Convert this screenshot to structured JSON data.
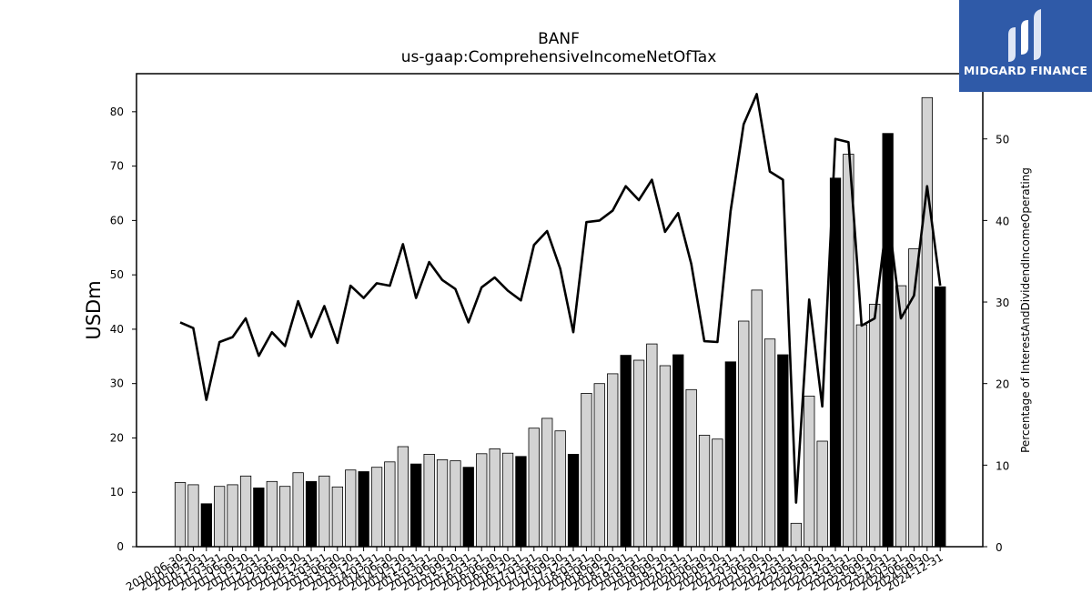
{
  "chart_data": {
    "type": "bar",
    "title": "BANF",
    "subtitle": "us-gaap:ComprehensiveIncomeNetOfTax",
    "ylabel": "USDm",
    "ylabel_right": "Percentage of InterestAndDividendIncomeOperating",
    "ylim": [
      0,
      87
    ],
    "ylim_right": [
      0,
      58
    ],
    "yticks": [
      0,
      10,
      20,
      30,
      40,
      50,
      60,
      70,
      80
    ],
    "yticks_right": [
      0,
      10,
      20,
      30,
      40,
      50
    ],
    "categories": [
      "2010-06-30",
      "2010-09-30",
      "2010-12-31",
      "2011-03-31",
      "2011-06-30",
      "2011-09-30",
      "2011-12-31",
      "2012-03-31",
      "2012-06-30",
      "2012-09-30",
      "2012-12-31",
      "2013-03-31",
      "2013-06-30",
      "2013-09-30",
      "2013-12-31",
      "2014-03-31",
      "2014-06-30",
      "2014-09-30",
      "2014-12-31",
      "2015-03-31",
      "2015-06-30",
      "2015-09-30",
      "2015-12-31",
      "2016-03-31",
      "2016-06-30",
      "2016-09-30",
      "2016-12-31",
      "2017-03-31",
      "2017-06-30",
      "2017-09-30",
      "2017-12-31",
      "2018-03-31",
      "2018-06-30",
      "2018-09-30",
      "2018-12-31",
      "2019-03-31",
      "2019-06-30",
      "2019-09-30",
      "2019-12-31",
      "2020-03-31",
      "2020-06-30",
      "2020-09-30",
      "2020-12-31",
      "2021-03-31",
      "2021-06-30",
      "2021-09-30",
      "2021-12-31",
      "2022-03-31",
      "2022-06-30",
      "2022-09-30",
      "2022-12-31",
      "2023-03-31",
      "2023-06-30",
      "2023-09-30",
      "2023-12-31",
      "2024-03-31",
      "2024-06-30",
      "2024-09-30",
      "2024-12-31"
    ],
    "series": [
      {
        "type": "bar",
        "axis": "left",
        "values": [
          11.8,
          11.4,
          7.9,
          11.1,
          11.4,
          13.0,
          10.8,
          12.0,
          11.1,
          13.6,
          12.0,
          13.0,
          11.0,
          14.1,
          13.8,
          14.6,
          15.6,
          18.4,
          15.2,
          17.0,
          16.0,
          15.8,
          14.6,
          17.1,
          18.0,
          17.2,
          16.6,
          21.8,
          23.6,
          21.3,
          17.0,
          28.2,
          30.0,
          31.8,
          35.2,
          34.3,
          37.3,
          33.3,
          35.3,
          28.9,
          20.5,
          19.8,
          34.0,
          41.5,
          47.2,
          38.2,
          35.3,
          4.3,
          27.7,
          19.4,
          67.8,
          72.2,
          40.8,
          44.6,
          76.0,
          48.0,
          54.8,
          82.6,
          47.8
        ],
        "highlight": [
          false,
          false,
          true,
          false,
          false,
          false,
          true,
          false,
          false,
          false,
          true,
          false,
          false,
          false,
          true,
          false,
          false,
          false,
          true,
          false,
          false,
          false,
          true,
          false,
          false,
          false,
          true,
          false,
          false,
          false,
          true,
          false,
          false,
          false,
          true,
          false,
          false,
          false,
          true,
          false,
          false,
          false,
          true,
          false,
          false,
          false,
          true,
          false,
          false,
          false,
          true,
          false,
          false,
          false,
          true,
          false,
          false,
          false,
          true
        ]
      },
      {
        "type": "line",
        "axis": "right",
        "values": [
          27.5,
          26.8,
          18.0,
          25.1,
          25.7,
          28.0,
          23.4,
          26.3,
          24.6,
          30.1,
          25.7,
          29.5,
          25.0,
          32.0,
          30.5,
          32.3,
          32.0,
          37.1,
          30.5,
          34.9,
          32.7,
          31.6,
          27.5,
          31.8,
          33.0,
          31.4,
          30.2,
          37.0,
          38.7,
          34.1,
          26.3,
          39.8,
          40.0,
          41.2,
          44.2,
          42.5,
          45.0,
          38.6,
          40.9,
          34.7,
          25.2,
          25.1,
          41.1,
          51.8,
          55.5,
          46.0,
          45.0,
          5.4,
          30.3,
          17.2,
          50.0,
          49.6,
          27.1,
          28.0,
          41.0,
          28.0,
          30.8,
          44.2,
          32.0
        ]
      }
    ],
    "colors": {
      "bar_normal": "#d3d3d3",
      "bar_highlight": "#000000",
      "line": "#000000",
      "logo_bg": "#2f5aa8"
    }
  },
  "logo": {
    "text": "MIDGARD FINANCE",
    "icon": "midgard-logo-icon"
  }
}
